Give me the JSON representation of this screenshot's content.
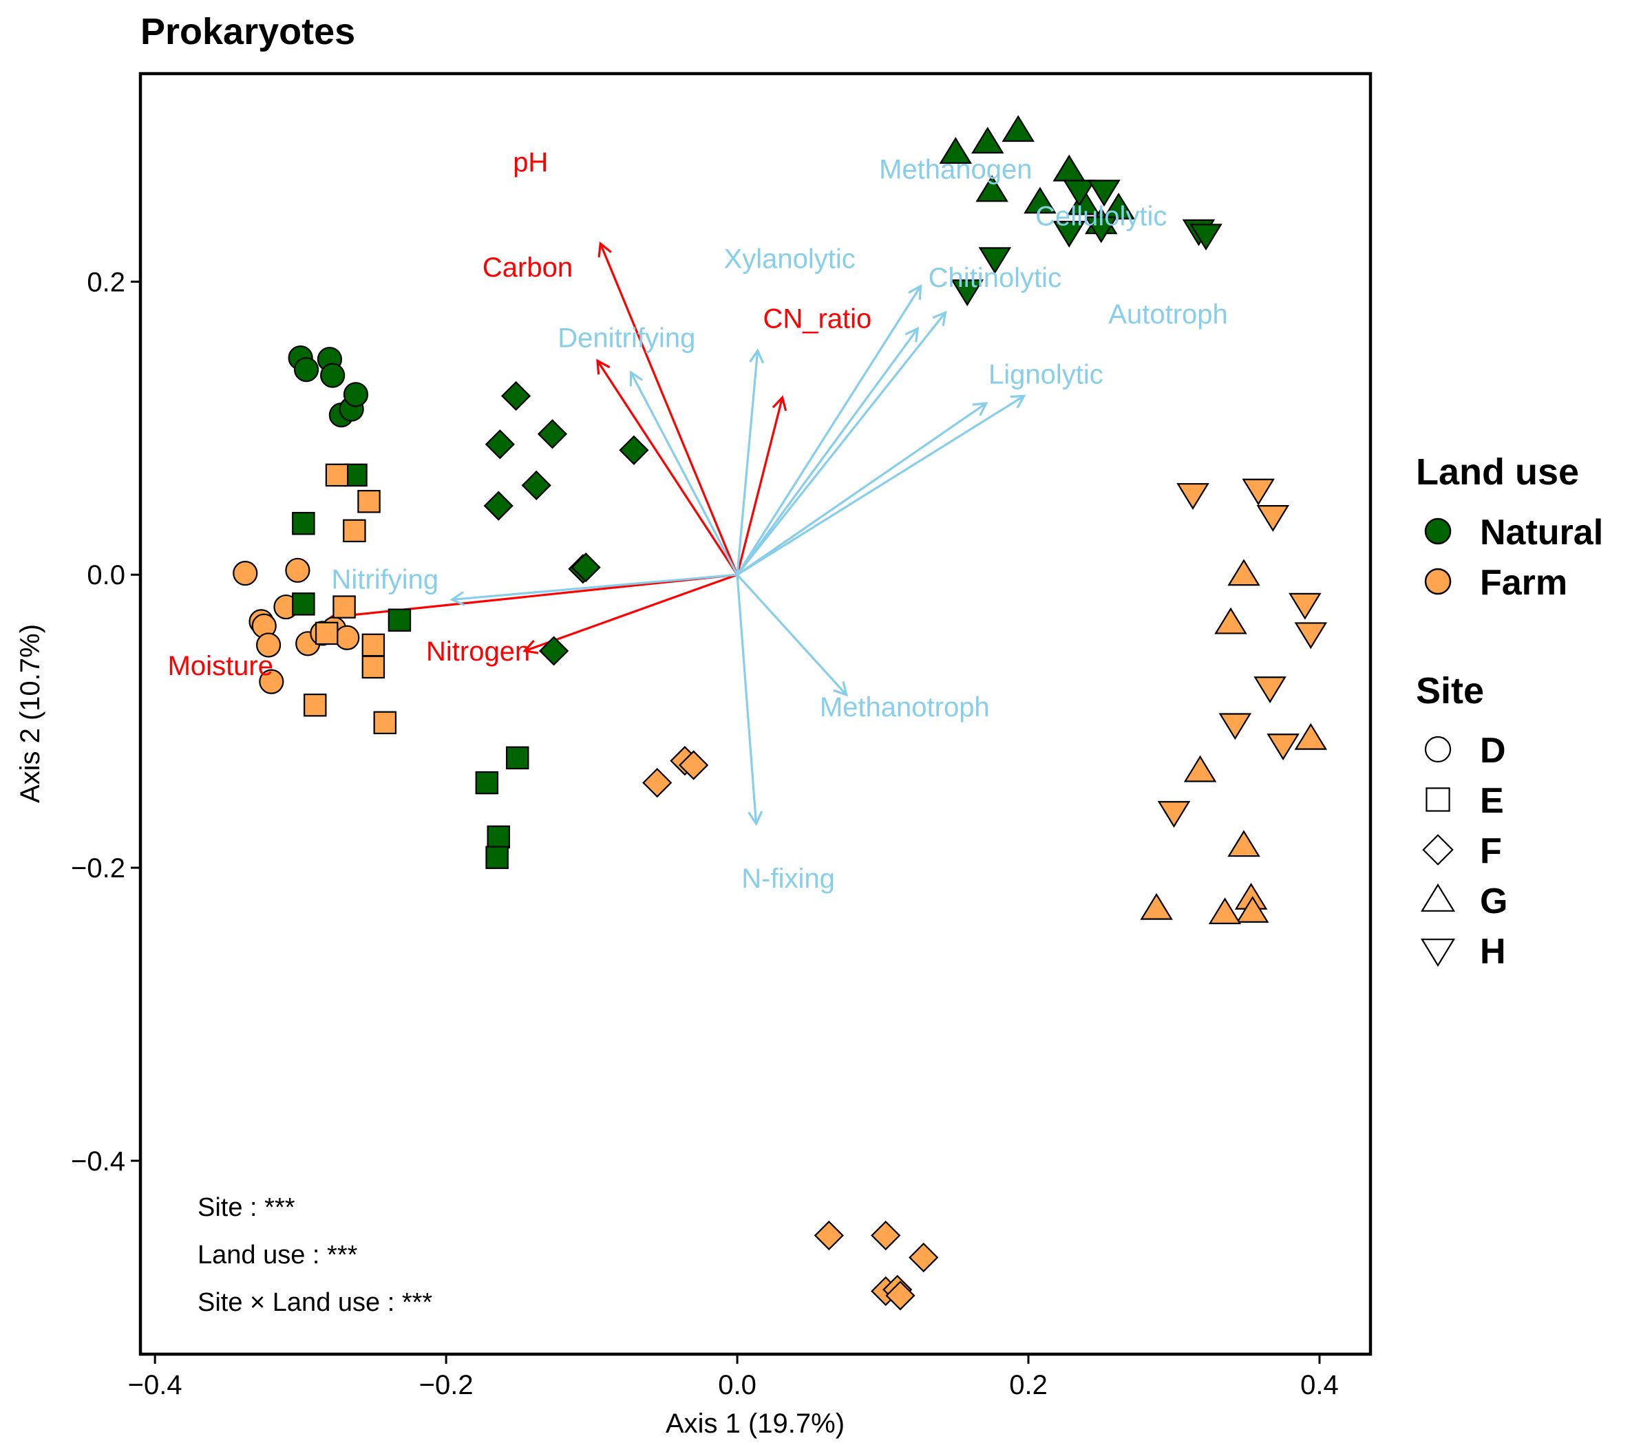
{
  "colors": {
    "natural": "#006400",
    "farm": "#FFA54F",
    "env_arrow": "#FF0000",
    "func_arrow": "#87CEEB"
  },
  "chart_data": {
    "type": "scatter",
    "title": "Prokaryotes",
    "xlabel": "Axis 1 (19.7%)",
    "ylabel": "Axis 2 (10.7%)",
    "xlim": [
      -0.41,
      0.435
    ],
    "ylim": [
      -0.532,
      0.342
    ],
    "x_ticks": [
      {
        "value": -0.4,
        "label": "−0.4"
      },
      {
        "value": -0.2,
        "label": "−0.2"
      },
      {
        "value": 0.0,
        "label": "0.0"
      },
      {
        "value": 0.2,
        "label": "0.2"
      },
      {
        "value": 0.4,
        "label": "0.4"
      }
    ],
    "y_ticks": [
      {
        "value": 0.2,
        "label": "0.2"
      },
      {
        "value": 0.0,
        "label": "0.0"
      },
      {
        "value": -0.2,
        "label": "−0.2"
      },
      {
        "value": -0.4,
        "label": "−0.4"
      }
    ],
    "grid": false,
    "legend_position": "right",
    "legend": {
      "land_use_title": "Land use",
      "land_use": [
        {
          "key": "natural",
          "label": "Natural"
        },
        {
          "key": "farm",
          "label": "Farm"
        }
      ],
      "site_title": "Site",
      "sites": [
        {
          "key": "D",
          "label": "D",
          "shape": "circle"
        },
        {
          "key": "E",
          "label": "E",
          "shape": "square"
        },
        {
          "key": "F",
          "label": "F",
          "shape": "diamond"
        },
        {
          "key": "G",
          "label": "G",
          "shape": "triangle-up"
        },
        {
          "key": "H",
          "label": "H",
          "shape": "triangle-down"
        }
      ]
    },
    "series": [
      {
        "site": "D",
        "land_use": "natural",
        "points": [
          [
            -0.3,
            0.148
          ],
          [
            -0.296,
            0.14
          ],
          [
            -0.28,
            0.147
          ],
          [
            -0.278,
            0.136
          ],
          [
            -0.272,
            0.109
          ],
          [
            -0.265,
            0.113
          ],
          [
            -0.262,
            0.123
          ]
        ]
      },
      {
        "site": "D",
        "land_use": "farm",
        "points": [
          [
            -0.338,
            0.001
          ],
          [
            -0.327,
            -0.032
          ],
          [
            -0.325,
            -0.035
          ],
          [
            -0.31,
            -0.022
          ],
          [
            -0.302,
            0.003
          ],
          [
            -0.295,
            -0.047
          ],
          [
            -0.285,
            -0.04
          ],
          [
            -0.277,
            -0.037
          ],
          [
            -0.268,
            -0.043
          ],
          [
            -0.322,
            -0.048
          ],
          [
            -0.32,
            -0.073
          ]
        ]
      },
      {
        "site": "E",
        "land_use": "natural",
        "points": [
          [
            -0.262,
            0.068
          ],
          [
            -0.298,
            0.035
          ],
          [
            -0.298,
            -0.02
          ],
          [
            -0.232,
            -0.031
          ],
          [
            -0.172,
            -0.142
          ],
          [
            -0.151,
            -0.125
          ],
          [
            -0.164,
            -0.179
          ],
          [
            -0.165,
            -0.193
          ]
        ]
      },
      {
        "site": "E",
        "land_use": "farm",
        "points": [
          [
            -0.275,
            0.068
          ],
          [
            -0.253,
            0.05
          ],
          [
            -0.263,
            0.03
          ],
          [
            -0.27,
            -0.022
          ],
          [
            -0.282,
            -0.04
          ],
          [
            -0.25,
            -0.048
          ],
          [
            -0.25,
            -0.063
          ],
          [
            -0.29,
            -0.089
          ],
          [
            -0.242,
            -0.101
          ]
        ]
      },
      {
        "site": "F",
        "land_use": "natural",
        "points": [
          [
            -0.152,
            0.122
          ],
          [
            -0.163,
            0.089
          ],
          [
            -0.127,
            0.096
          ],
          [
            -0.164,
            0.047
          ],
          [
            -0.138,
            0.061
          ],
          [
            -0.071,
            0.085
          ],
          [
            -0.106,
            0.004
          ],
          [
            -0.104,
            0.005
          ],
          [
            -0.126,
            -0.052
          ]
        ]
      },
      {
        "site": "F",
        "land_use": "farm",
        "points": [
          [
            -0.055,
            -0.142
          ],
          [
            -0.036,
            -0.127
          ],
          [
            -0.03,
            -0.13
          ],
          [
            0.063,
            -0.451
          ],
          [
            0.102,
            -0.451
          ],
          [
            0.128,
            -0.466
          ],
          [
            0.102,
            -0.489
          ],
          [
            0.11,
            -0.488
          ],
          [
            0.112,
            -0.492
          ]
        ]
      },
      {
        "site": "G",
        "land_use": "natural",
        "points": [
          [
            0.15,
            0.288
          ],
          [
            0.172,
            0.295
          ],
          [
            0.193,
            0.303
          ],
          [
            0.228,
            0.276
          ],
          [
            0.175,
            0.262
          ],
          [
            0.208,
            0.254
          ],
          [
            0.238,
            0.253
          ],
          [
            0.25,
            0.24
          ],
          [
            0.262,
            0.25
          ]
        ]
      },
      {
        "site": "G",
        "land_use": "farm",
        "points": [
          [
            0.348,
            0.0
          ],
          [
            0.339,
            -0.033
          ],
          [
            0.394,
            -0.112
          ],
          [
            0.318,
            -0.134
          ],
          [
            0.348,
            -0.185
          ],
          [
            0.353,
            -0.221
          ],
          [
            0.354,
            -0.23
          ],
          [
            0.288,
            -0.228
          ],
          [
            0.335,
            -0.231
          ]
        ]
      },
      {
        "site": "G",
        "land_use": "natural",
        "points": []
      },
      {
        "site": "H",
        "land_use": "natural",
        "points": [
          [
            0.177,
            0.216
          ],
          [
            0.158,
            0.194
          ],
          [
            0.228,
            0.234
          ],
          [
            0.235,
            0.262
          ],
          [
            0.252,
            0.262
          ],
          [
            0.25,
            0.237
          ],
          [
            0.317,
            0.235
          ],
          [
            0.322,
            0.232
          ]
        ]
      },
      {
        "site": "H",
        "land_use": "farm",
        "points": [
          [
            0.313,
            0.055
          ],
          [
            0.358,
            0.058
          ],
          [
            0.368,
            0.04
          ],
          [
            0.39,
            -0.02
          ],
          [
            0.394,
            -0.04
          ],
          [
            0.366,
            -0.077
          ],
          [
            0.342,
            -0.102
          ],
          [
            0.375,
            -0.116
          ],
          [
            0.3,
            -0.162
          ]
        ]
      }
    ],
    "arrows": [
      {
        "label": "Moisture",
        "group": "env",
        "end": [
          -0.279,
          -0.029
        ],
        "label_pos": [
          -0.355,
          -0.062
        ]
      },
      {
        "label": "Nitrogen",
        "group": "env",
        "end": [
          -0.146,
          -0.052
        ],
        "label_pos": [
          -0.178,
          -0.052
        ]
      },
      {
        "label": "Carbon",
        "group": "env",
        "end": [
          -0.094,
          0.226
        ],
        "label_pos": [
          -0.144,
          0.21
        ]
      },
      {
        "label": "pH",
        "group": "env",
        "end": [
          -0.096,
          0.146
        ],
        "label_pos": [
          -0.142,
          0.282
        ]
      },
      {
        "label": "CN_ratio",
        "group": "env",
        "end": [
          0.031,
          0.121
        ],
        "label_pos": [
          0.055,
          0.175
        ]
      },
      {
        "label": "Nitrifying",
        "group": "func",
        "end": [
          -0.196,
          -0.017
        ],
        "label_pos": [
          -0.242,
          -0.003
        ]
      },
      {
        "label": "Denitrifying",
        "group": "func",
        "end": [
          -0.073,
          0.138
        ],
        "label_pos": [
          -0.076,
          0.162
        ]
      },
      {
        "label": "Xylanolytic",
        "group": "func",
        "end": [
          0.014,
          0.153
        ],
        "label_pos": [
          0.036,
          0.216
        ]
      },
      {
        "label": "Methanogen",
        "group": "func",
        "end": [
          0.124,
          0.168
        ],
        "label_pos": [
          0.15,
          0.277
        ]
      },
      {
        "label": "Chitinolytic",
        "group": "func",
        "end": [
          0.126,
          0.197
        ],
        "label_pos": [
          0.177,
          0.203
        ]
      },
      {
        "label": "Cellulolytic",
        "group": "func",
        "end": [
          0.143,
          0.179
        ],
        "label_pos": [
          0.25,
          0.245
        ]
      },
      {
        "label": "Autotroph",
        "group": "func",
        "end": [
          0.197,
          0.122
        ],
        "label_pos": [
          0.296,
          0.178
        ]
      },
      {
        "label": "Lignolytic",
        "group": "func",
        "end": [
          0.171,
          0.117
        ],
        "label_pos": [
          0.212,
          0.137
        ]
      },
      {
        "label": "Methanotroph",
        "group": "func",
        "end": [
          0.075,
          -0.082
        ],
        "label_pos": [
          0.115,
          -0.09
        ]
      },
      {
        "label": "N-fixing",
        "group": "func",
        "end": [
          0.013,
          -0.17
        ],
        "label_pos": [
          0.035,
          -0.207
        ]
      }
    ],
    "annotations": [
      "Site : ***",
      "Land use : ***",
      "Site × Land use : ***"
    ]
  }
}
